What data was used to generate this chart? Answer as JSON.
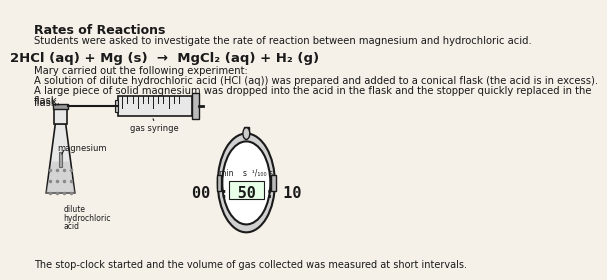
{
  "title": "Rates of Reactions",
  "line1": "Students were asked to investigate the rate of reaction between magnesium and hydrochloric acid.",
  "equation_parts": {
    "main": "2HCl",
    "sub1": "(aq)",
    "plus1": " + Mg",
    "sub2": "(s)",
    "arrow": " → MgCl",
    "sub3": "2",
    "sub4": "(aq)",
    "plus2": " + H",
    "sub5": "2",
    "sub6": "(g)"
  },
  "mary_line": "Mary carried out the following experiment:",
  "exp_line1": "A solution of dilute hydrochloric acid (HCl (aq)) was prepared and added to a conical flask (the acid is in excess).",
  "exp_line2": "A large piece of solid magnesium was dropped into the acid in the flask and the stopper quickly replaced in the flask.",
  "label_magnesium": "magnesium",
  "label_gas_syringe": "gas syringe",
  "label_acid1": "dilute",
  "label_acid2": "hydrochloric",
  "label_acid3": "acid",
  "stopwatch_header": "min    s  ¹/₁₀₀ s",
  "stopwatch_time": "00 : 50 : 10",
  "footer": "The stop-clock started and the volume of gas collected was measured at short intervals.",
  "bg_color": "#f5f0e8",
  "text_color": "#1a1a1a"
}
